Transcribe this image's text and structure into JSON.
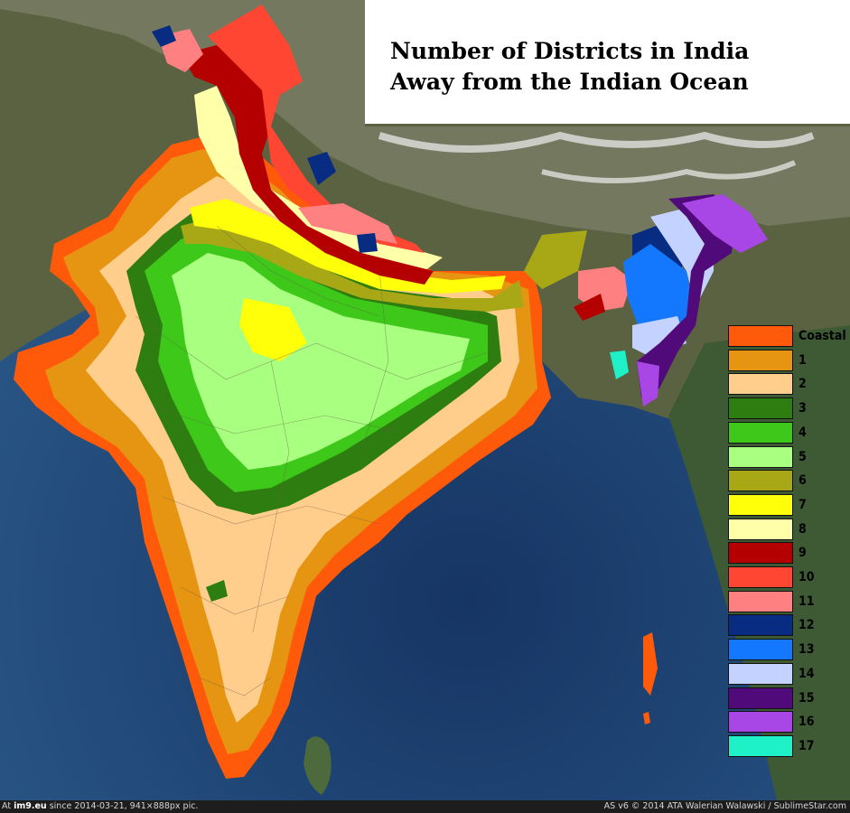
{
  "title": {
    "line1": "Number of Districts in India",
    "line2": "Away from the Indian Ocean"
  },
  "legend": [
    {
      "label": "Coastal",
      "color": "#ff5a0a"
    },
    {
      "label": "1",
      "color": "#e69512"
    },
    {
      "label": "2",
      "color": "#ffce8c"
    },
    {
      "label": "3",
      "color": "#2e7d10"
    },
    {
      "label": "4",
      "color": "#3ec81a"
    },
    {
      "label": "5",
      "color": "#a8ff80"
    },
    {
      "label": "6",
      "color": "#a8a816"
    },
    {
      "label": "7",
      "color": "#ffff0a"
    },
    {
      "label": "8",
      "color": "#ffffaa"
    },
    {
      "label": "9",
      "color": "#b40000"
    },
    {
      "label": "10",
      "color": "#ff4632"
    },
    {
      "label": "11",
      "color": "#ff8080"
    },
    {
      "label": "12",
      "color": "#082c82"
    },
    {
      "label": "13",
      "color": "#1478ff"
    },
    {
      "label": "14",
      "color": "#c4d2ff"
    },
    {
      "label": "15",
      "color": "#500a7a"
    },
    {
      "label": "16",
      "color": "#a846e6"
    },
    {
      "label": "17",
      "color": "#1ef0c8"
    }
  ],
  "footer": {
    "left_prefix": "At",
    "left_site": "im9.eu",
    "left_rest": " since 2014-03-21, 941×888px pic.",
    "right": "AS v6 © 2014 ATA Walerian Walawski / SublimeStar.com"
  },
  "colors": {
    "ocean": "#1b3d6e",
    "land": "#4b5a3a"
  }
}
